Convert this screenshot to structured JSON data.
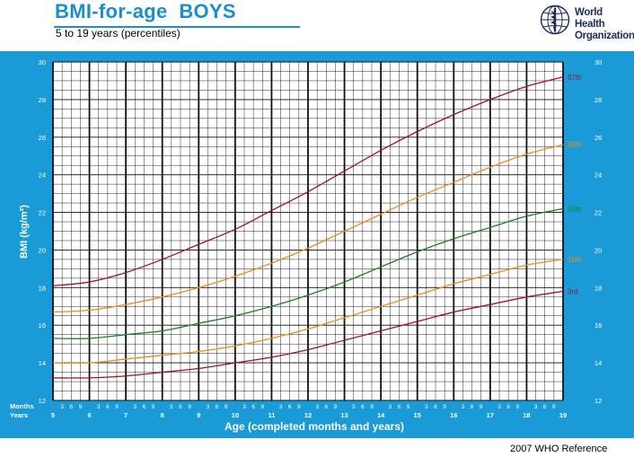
{
  "header": {
    "title": "BMI-for-age  BOYS",
    "subtitle": "5 to 19 years (percentiles)",
    "organization_line1": "World Health",
    "organization_line2": "Organization",
    "footer": "2007  WHO Reference"
  },
  "colors": {
    "frame": "#1a9ad6",
    "plot_bg": "#ffffff",
    "grid": "#111111",
    "p3": "#a0122a",
    "p15": "#f08a1e",
    "p50": "#1e7e26",
    "p85": "#f08a1e",
    "p97": "#a0122a",
    "title": "#1a8fd0"
  },
  "chart_data": {
    "type": "line",
    "title": "BMI-for-age  BOYS",
    "subtitle": "5 to 19 years (percentiles)",
    "xlabel": "Age (completed months and years)",
    "ylabel": "BMI (kg/m²)",
    "xlim": [
      5,
      19
    ],
    "ylim": [
      12,
      30
    ],
    "x_ticks": [
      "5",
      "6",
      "7",
      "8",
      "9",
      "10",
      "11",
      "12",
      "13",
      "14",
      "15",
      "16",
      "17",
      "18",
      "19"
    ],
    "y_ticks": [
      "12",
      "14",
      "16",
      "18",
      "20",
      "22",
      "24",
      "26",
      "28",
      "30"
    ],
    "month_ticks": [
      "3",
      "6",
      "9"
    ],
    "axis_row_labels": {
      "months": "Months",
      "years": "Years"
    },
    "grid": true,
    "x": [
      5,
      6,
      7,
      8,
      9,
      10,
      11,
      12,
      13,
      14,
      15,
      16,
      17,
      18,
      19
    ],
    "series": [
      {
        "name": "97th",
        "color_key": "p97",
        "values": [
          18.1,
          18.3,
          18.8,
          19.5,
          20.3,
          21.1,
          22.1,
          23.1,
          24.2,
          25.3,
          26.3,
          27.2,
          28.0,
          28.7,
          29.2
        ]
      },
      {
        "name": "85th",
        "color_key": "p85",
        "values": [
          16.7,
          16.8,
          17.1,
          17.5,
          18.0,
          18.6,
          19.3,
          20.1,
          21.0,
          21.9,
          22.8,
          23.6,
          24.4,
          25.1,
          25.6
        ]
      },
      {
        "name": "50th",
        "color_key": "p50",
        "values": [
          15.3,
          15.3,
          15.5,
          15.7,
          16.1,
          16.5,
          17.0,
          17.6,
          18.3,
          19.1,
          19.9,
          20.6,
          21.2,
          21.8,
          22.2
        ]
      },
      {
        "name": "15th",
        "color_key": "p15",
        "values": [
          14.0,
          14.0,
          14.2,
          14.4,
          14.6,
          14.9,
          15.3,
          15.8,
          16.4,
          17.0,
          17.6,
          18.2,
          18.7,
          19.2,
          19.5
        ]
      },
      {
        "name": "3rd",
        "color_key": "p3",
        "values": [
          13.2,
          13.2,
          13.3,
          13.5,
          13.7,
          14.0,
          14.3,
          14.7,
          15.2,
          15.7,
          16.2,
          16.7,
          17.1,
          17.5,
          17.8
        ]
      }
    ]
  }
}
